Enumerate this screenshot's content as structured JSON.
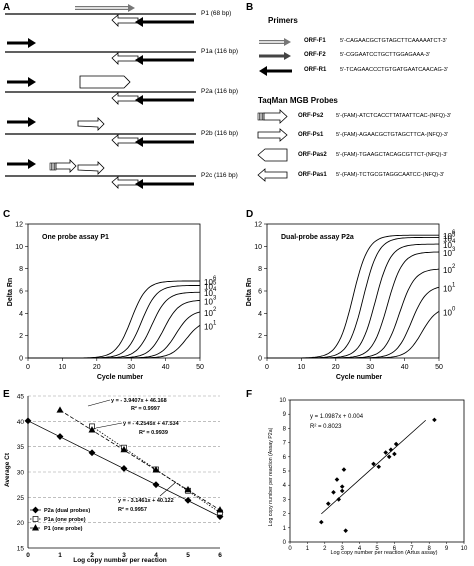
{
  "panels": {
    "A": "A",
    "B": "B",
    "C": "C",
    "D": "D",
    "E": "E",
    "F": "F"
  },
  "panel_a": {
    "rows": [
      {
        "label": "P1 (68 bp)"
      },
      {
        "label": "P1a (116 bp)"
      },
      {
        "label": "P2a (116 bp)"
      },
      {
        "label": "P2b (116 bp)"
      },
      {
        "label": "P2c (116 bp)"
      }
    ]
  },
  "panel_b": {
    "primers_title": "Primers",
    "primers": [
      {
        "name": "ORF-F1",
        "seq": "5'-CAGAACGCTGTAGCTTCAAAAATCT-3'",
        "icon": "double-line-arrow-right"
      },
      {
        "name": "ORF-F2",
        "seq": "5'-CGGAATCCTGCTTGGAGAAA-3'",
        "icon": "gray-arrow-right"
      },
      {
        "name": "ORF-R1",
        "seq": "5'-TCAGAACCCTGTGATGAATCAACAG-3'",
        "icon": "black-arrow-left"
      }
    ],
    "probes_title": "TaqMan MGB Probes",
    "probes": [
      {
        "name": "ORF-Ps2",
        "seq": "5'-(FAM)-ATCTCACCTTATAATTCAC-(NFQ)-3'",
        "icon": "striped-arrow-right"
      },
      {
        "name": "ORF-Ps1",
        "seq": "5'-(FAM)-AGAACGCTGTAGCTTCA-(NFQ)-3'",
        "icon": "open-arrow-right"
      },
      {
        "name": "ORF-Pas2",
        "seq": "5'-(FAM)-TGAAGCTACAGCGTTCT-(NFQ)-3'",
        "icon": "open-chevron-left"
      },
      {
        "name": "ORF-Pas1",
        "seq": "5'-(FAM)-TCTGCGTAGGCAATCC-(NFQ)-3'",
        "icon": "open-arrow-left"
      }
    ]
  },
  "chart_data": [
    {
      "panel": "C",
      "type": "line",
      "annotation": "One probe assay P1",
      "xlabel": "Cycle number",
      "ylabel": "Delta Rn",
      "xlim": [
        0,
        50
      ],
      "ylim": [
        0,
        12
      ],
      "xticks": [
        0,
        10,
        20,
        30,
        40,
        50
      ],
      "yticks": [
        0,
        2,
        4,
        6,
        8,
        10,
        12
      ],
      "series_labels": [
        "10^6",
        "10^5",
        "10^4",
        "10^3",
        "10^2",
        "10^1"
      ],
      "series": [
        {
          "label": "6",
          "midpoint": 30,
          "plateau": 6.9
        },
        {
          "label": "5",
          "midpoint": 33,
          "plateau": 6.5
        },
        {
          "label": "4",
          "midpoint": 36,
          "plateau": 5.9
        },
        {
          "label": "3",
          "midpoint": 39.5,
          "plateau": 5.2
        },
        {
          "label": "2",
          "midpoint": 43,
          "plateau": 4.3
        },
        {
          "label": "1",
          "midpoint": 46,
          "plateau": 3.4
        }
      ]
    },
    {
      "panel": "D",
      "type": "line",
      "annotation": "Dual-probe assay P2a",
      "xlabel": "Cycle number",
      "ylabel": "Delta Rn",
      "xlim": [
        0,
        50
      ],
      "ylim": [
        0,
        12
      ],
      "xticks": [
        0,
        10,
        20,
        30,
        40,
        50
      ],
      "yticks": [
        0,
        2,
        4,
        6,
        8,
        10,
        12
      ],
      "series": [
        {
          "label": "6",
          "midpoint": 25,
          "plateau": 11.0
        },
        {
          "label": "5",
          "midpoint": 28,
          "plateau": 10.8
        },
        {
          "label": "4",
          "midpoint": 31.5,
          "plateau": 10.2
        },
        {
          "label": "3",
          "midpoint": 35,
          "plateau": 9.5
        },
        {
          "label": "2",
          "midpoint": 38.5,
          "plateau": 8.0
        },
        {
          "label": "1",
          "midpoint": 42,
          "plateau": 6.5
        },
        {
          "label": "0",
          "midpoint": 45,
          "plateau": 4.6
        }
      ]
    },
    {
      "panel": "E",
      "type": "scatter",
      "xlabel": "Log copy number per reaction",
      "ylabel": "Average Ct",
      "xlim": [
        0,
        6
      ],
      "ylim": [
        15,
        45
      ],
      "xticks": [
        0,
        1,
        2,
        3,
        4,
        5,
        6
      ],
      "yticks": [
        15,
        20,
        25,
        30,
        35,
        40,
        45
      ],
      "legend": [
        "P2a (dual probes)",
        "P1a (one probe)",
        "P1 (one probe)"
      ],
      "equations": [
        {
          "eq": "y = - 3.9407x + 46.168",
          "r2": "R² = 0.9997"
        },
        {
          "eq": "y = - 4.2545x + 47.534",
          "r2": "R² = 0.9939"
        },
        {
          "eq": "y = - 3.1461x + 40.122",
          "r2": "R² = 0.9957"
        }
      ],
      "series": [
        {
          "name": "P2a (dual probes)",
          "marker": "diamond",
          "x": [
            0,
            1,
            2,
            3,
            4,
            5,
            6
          ],
          "y": [
            40.1,
            37.0,
            33.8,
            30.7,
            27.5,
            24.4,
            21.2
          ]
        },
        {
          "name": "P1a (one probe)",
          "marker": "square",
          "x": [
            2,
            3,
            4,
            5,
            6
          ],
          "y": [
            39.0,
            34.8,
            30.5,
            26.3,
            22.0
          ]
        },
        {
          "name": "P1 (one probe)",
          "marker": "triangle",
          "x": [
            1,
            2,
            3,
            4,
            5,
            6
          ],
          "y": [
            42.2,
            38.3,
            34.4,
            30.4,
            26.5,
            22.5
          ]
        }
      ]
    },
    {
      "panel": "F",
      "type": "scatter",
      "xlabel": "Log copy number per reaction (Artus assay)",
      "ylabel": "Log copy number per reaction (Assay P2a)",
      "xlim": [
        0,
        10
      ],
      "ylim": [
        0,
        10
      ],
      "xticks": [
        0,
        1,
        2,
        3,
        4,
        5,
        6,
        7,
        8,
        9,
        10
      ],
      "yticks": [
        0,
        1,
        2,
        3,
        4,
        5,
        6,
        7,
        8,
        9,
        10
      ],
      "equation": "y = 1.0987x + 0.004",
      "r2": "R² = 0.8023",
      "x": [
        1.8,
        2.2,
        2.5,
        2.7,
        2.8,
        3.0,
        3.0,
        3.1,
        3.2,
        4.8,
        5.1,
        5.5,
        5.7,
        5.8,
        6.0,
        6.1,
        8.3
      ],
      "y": [
        1.4,
        2.7,
        3.5,
        4.4,
        3.0,
        3.6,
        3.9,
        5.1,
        0.8,
        5.5,
        5.3,
        6.3,
        6.0,
        6.5,
        6.2,
        6.9,
        8.6
      ]
    }
  ]
}
